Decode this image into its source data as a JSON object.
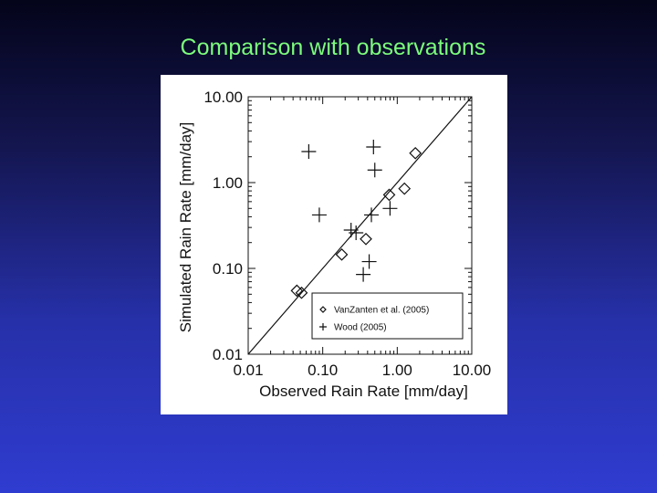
{
  "slide": {
    "title": "Comparison with observations"
  },
  "chart_data": {
    "type": "scatter",
    "xlabel": "Observed Rain Rate [mm/day]",
    "ylabel": "Simulated Rain Rate [mm/day]",
    "xscale": "log",
    "yscale": "log",
    "xlim": [
      0.01,
      10.0
    ],
    "ylim": [
      0.01,
      10.0
    ],
    "x_ticks": [
      "0.01",
      "0.10",
      "1.00",
      "10.00"
    ],
    "y_ticks": [
      "0.01",
      "0.10",
      "1.00",
      "10.00"
    ],
    "one_to_one_line": true,
    "grid": false,
    "legend_position": "bottom-right",
    "series": [
      {
        "name": "VanZanten et al. (2005)",
        "marker": "diamond",
        "points": [
          {
            "x": 0.045,
            "y": 0.055
          },
          {
            "x": 0.052,
            "y": 0.052
          },
          {
            "x": 0.18,
            "y": 0.145
          },
          {
            "x": 0.38,
            "y": 0.22
          },
          {
            "x": 0.78,
            "y": 0.72
          },
          {
            "x": 1.25,
            "y": 0.85
          },
          {
            "x": 1.75,
            "y": 2.2
          }
        ]
      },
      {
        "name": "Wood (2005)",
        "marker": "plus",
        "points": [
          {
            "x": 0.065,
            "y": 2.3
          },
          {
            "x": 0.09,
            "y": 0.42
          },
          {
            "x": 0.48,
            "y": 2.6
          },
          {
            "x": 0.5,
            "y": 1.4
          },
          {
            "x": 0.24,
            "y": 0.28
          },
          {
            "x": 0.28,
            "y": 0.26
          },
          {
            "x": 0.45,
            "y": 0.42
          },
          {
            "x": 0.8,
            "y": 0.5
          },
          {
            "x": 0.42,
            "y": 0.12
          },
          {
            "x": 0.35,
            "y": 0.085
          }
        ]
      }
    ]
  }
}
